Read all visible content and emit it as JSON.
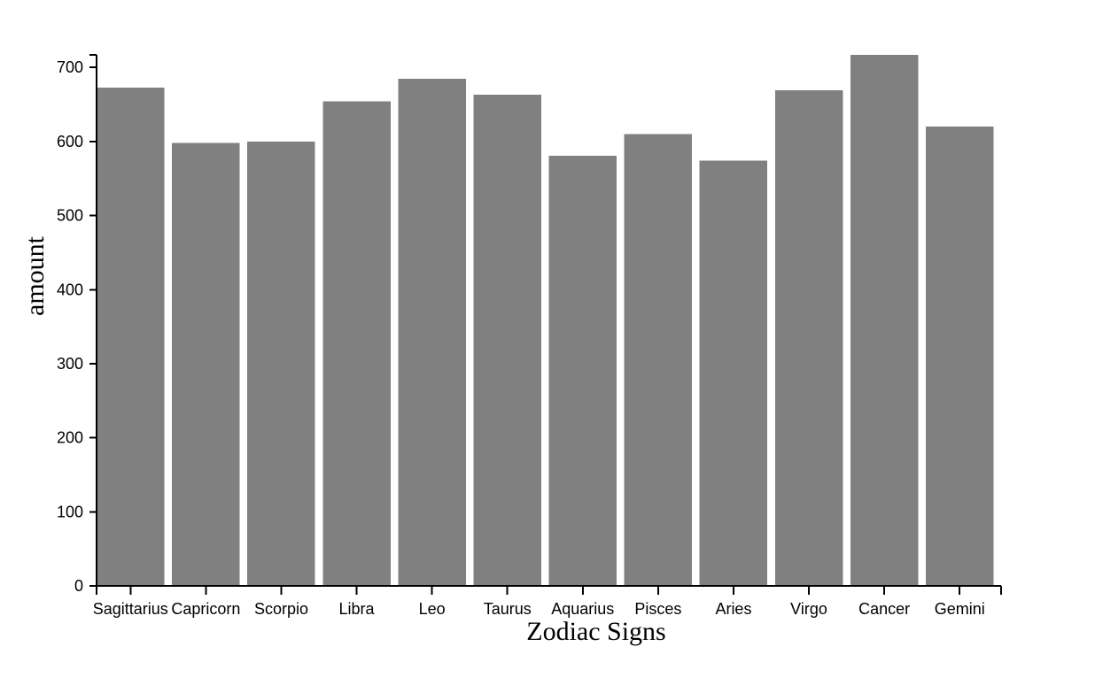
{
  "chart_data": {
    "type": "bar",
    "title": "",
    "xlabel": "Zodiac Signs",
    "ylabel": "amount",
    "categories": [
      "Sagittarius",
      "Capricorn",
      "Scorpio",
      "Libra",
      "Leo",
      "Taurus",
      "Aquarius",
      "Pisces",
      "Aries",
      "Virgo",
      "Cancer",
      "Gemini"
    ],
    "values": [
      673,
      598,
      600,
      654,
      685,
      663,
      581,
      610,
      574,
      669,
      717,
      620
    ],
    "yticks": [
      0,
      100,
      200,
      300,
      400,
      500,
      600,
      700
    ],
    "ylim": [
      0,
      717
    ],
    "grid": false,
    "legend": "none",
    "bar_color": "#808080",
    "axis_color": "#000000",
    "background": "#ffffff"
  }
}
